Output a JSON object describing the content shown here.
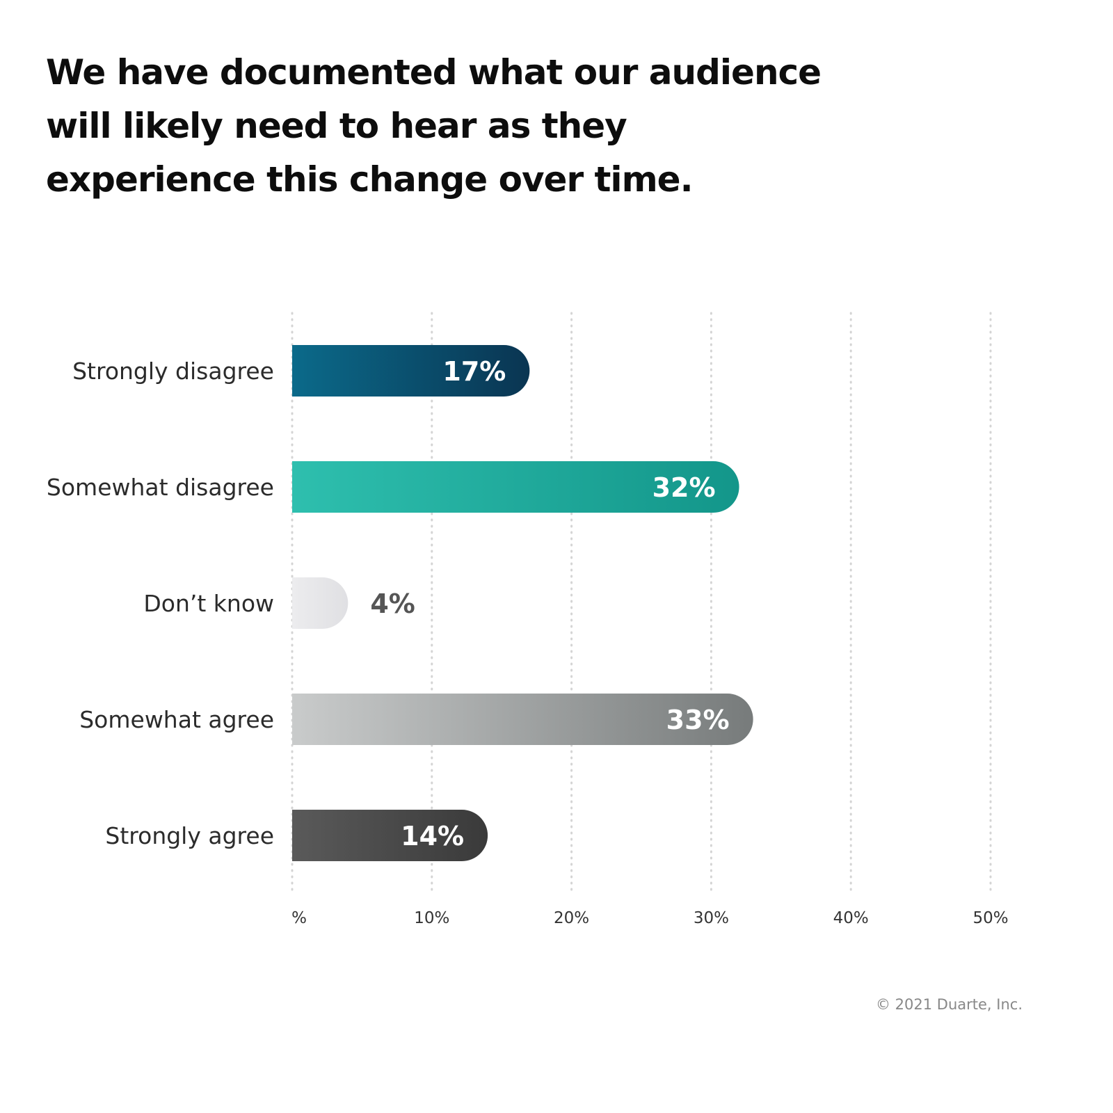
{
  "chart_data": {
    "type": "bar",
    "orientation": "horizontal",
    "title": "We have documented what our audience will likely need to hear as they experience this change over time.",
    "categories": [
      "Strongly disagree",
      "Somewhat disagree",
      "Don’t know",
      "Somewhat agree",
      "Strongly agree"
    ],
    "values": [
      17,
      32,
      4,
      33,
      14
    ],
    "value_labels": [
      "17%",
      "32%",
      "4%",
      "33%",
      "14%"
    ],
    "xlim": [
      0,
      50
    ],
    "x_ticks": [
      0,
      10,
      20,
      30,
      40,
      50
    ],
    "x_tick_labels": [
      "%",
      "10%",
      "20%",
      "30%",
      "40%",
      "50%"
    ],
    "grid": true,
    "bar_colors": [
      [
        "#0b6a8a",
        "#0a3552"
      ],
      [
        "#2ebfae",
        "#13968a"
      ],
      [
        "#ececee",
        "#e0e0e3"
      ],
      [
        "#c9cbcb",
        "#777b7b"
      ],
      [
        "#5a5a5a",
        "#3a3a3a"
      ]
    ],
    "value_label_colors": [
      "#ffffff",
      "#ffffff",
      "#555555",
      "#ffffff",
      "#ffffff"
    ]
  },
  "footer": {
    "copyright": "© 2021 Duarte, Inc."
  }
}
